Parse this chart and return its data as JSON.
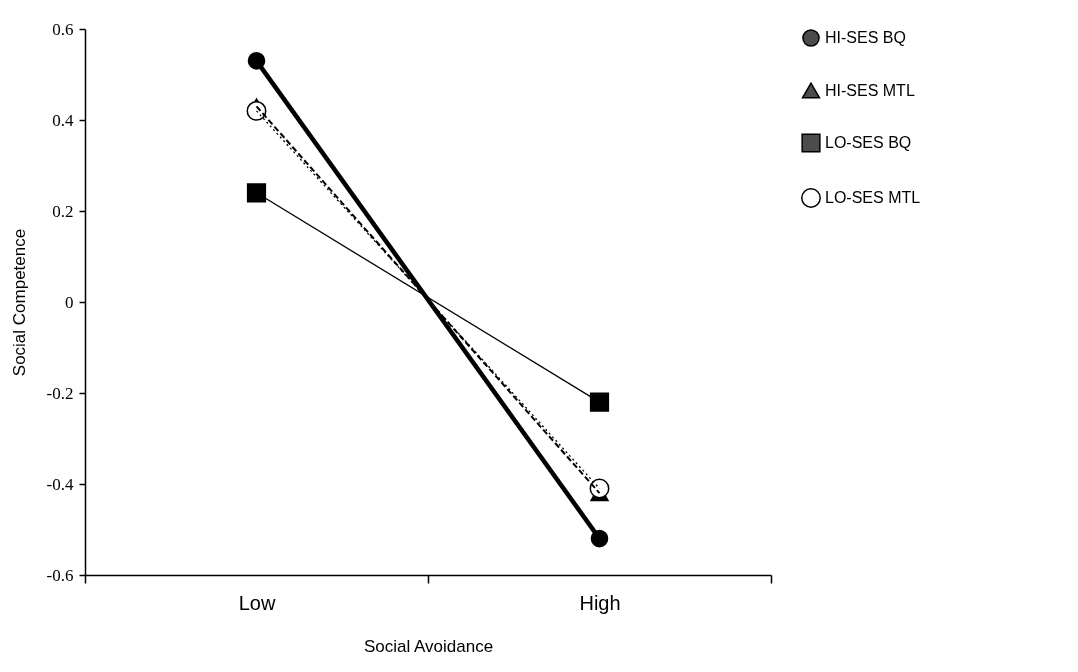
{
  "chart_data": {
    "type": "line",
    "xlabel": "Social Avoidance",
    "ylabel": "Social Competence",
    "categories": [
      "Low",
      "High"
    ],
    "series": [
      {
        "name": "HI-SES BQ",
        "color": "#000000",
        "values": [
          0.53,
          -0.52
        ],
        "marker": "circle",
        "line_style": "solid"
      },
      {
        "name": "HI-SES MTL",
        "color": "#000000",
        "values": [
          0.43,
          -0.42
        ],
        "marker": "triangle",
        "line_style": "dashed"
      },
      {
        "name": "LO-SES BQ",
        "color": "#000000",
        "values": [
          0.24,
          -0.22
        ],
        "marker": "square",
        "line_style": "solid"
      },
      {
        "name": "LO-SES MTL",
        "color": "#000000",
        "values": [
          0.42,
          -0.41
        ],
        "marker": "circle",
        "line_style": "dotted"
      }
    ],
    "ylim": [
      -0.6,
      0.6
    ],
    "yticks": [
      -0.6,
      -0.4,
      -0.2,
      0,
      0.2,
      0.4,
      0.6
    ],
    "grid": false,
    "legend": "right"
  }
}
